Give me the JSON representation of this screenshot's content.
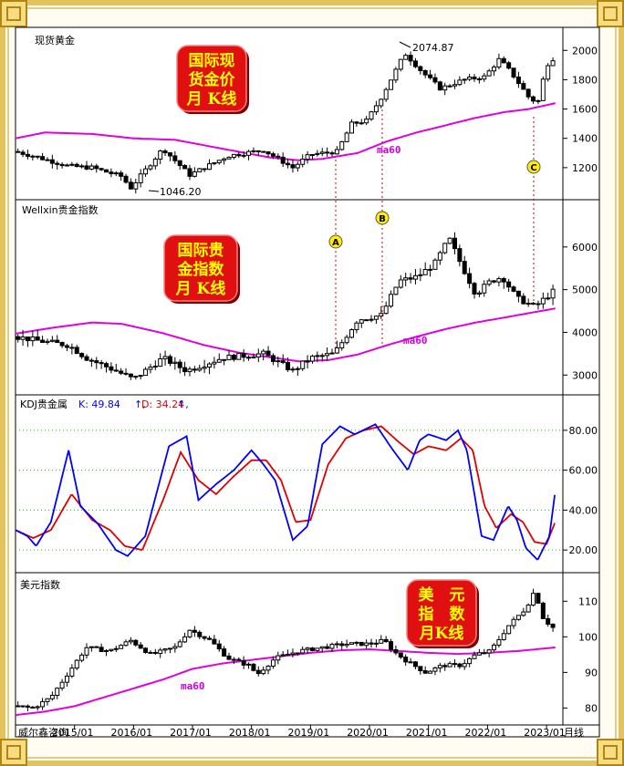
{
  "colors": {
    "frame_gold": "#d9b44a",
    "ma60": "#e000e0",
    "kdj_k": "#0000ff",
    "kdj_d": "#e00000",
    "badge_red": "#e01010",
    "badge_text": "#ffff00",
    "marker_fill": "#ffee00",
    "grid_dotted": "#2faa2f"
  },
  "chart_data": [
    {
      "type": "candlestick",
      "title": "现货黄金",
      "badge_lines": [
        "国际现",
        "货金价",
        "月 K线"
      ],
      "annotations": {
        "high_label": "2074.87",
        "low_label": "1046.20",
        "ma_label": "ma60",
        "marker": "C"
      },
      "ylim": [
        1000,
        2120
      ],
      "yticks": [
        "1200",
        "1400",
        "1600",
        "1800",
        "2000"
      ],
      "ytick_values": [
        1200,
        1400,
        1600,
        1800,
        2000
      ],
      "anchors": [
        [
          2014.0,
          1310
        ],
        [
          2014.3,
          1280
        ],
        [
          2014.9,
          1210
        ],
        [
          2015.3,
          1200
        ],
        [
          2015.8,
          1140
        ],
        [
          2015.95,
          1060
        ],
        [
          2016.5,
          1330
        ],
        [
          2016.95,
          1150
        ],
        [
          2017.6,
          1280
        ],
        [
          2018.2,
          1320
        ],
        [
          2018.7,
          1200
        ],
        [
          2019.0,
          1290
        ],
        [
          2019.45,
          1310
        ],
        [
          2019.7,
          1500
        ],
        [
          2019.95,
          1520
        ],
        [
          2020.2,
          1680
        ],
        [
          2020.6,
          1980
        ],
        [
          2020.9,
          1850
        ],
        [
          2021.2,
          1740
        ],
        [
          2021.6,
          1800
        ],
        [
          2021.95,
          1820
        ],
        [
          2022.2,
          1940
        ],
        [
          2022.4,
          1850
        ],
        [
          2022.7,
          1680
        ],
        [
          2022.85,
          1640
        ],
        [
          2023.0,
          1900
        ],
        [
          2023.15,
          1960
        ]
      ],
      "ma60": [
        [
          2014.0,
          1400
        ],
        [
          2014.5,
          1440
        ],
        [
          2015.3,
          1430
        ],
        [
          2016.0,
          1400
        ],
        [
          2016.7,
          1390
        ],
        [
          2017.5,
          1330
        ],
        [
          2018.3,
          1270
        ],
        [
          2018.8,
          1250
        ],
        [
          2019.2,
          1260
        ],
        [
          2019.8,
          1300
        ],
        [
          2020.3,
          1380
        ],
        [
          2020.8,
          1440
        ],
        [
          2021.3,
          1490
        ],
        [
          2021.8,
          1540
        ],
        [
          2022.3,
          1580
        ],
        [
          2022.7,
          1600
        ],
        [
          2023.15,
          1640
        ]
      ]
    },
    {
      "type": "candlestick",
      "title": "Wellxin贵金指数",
      "badge_lines": [
        "国际贵",
        "金指数",
        "月 K线"
      ],
      "annotations": {
        "ma_label": "ma60",
        "markers": [
          "A",
          "B"
        ]
      },
      "ylim": [
        2600,
        7000
      ],
      "yticks": [
        "3000",
        "4000",
        "5000",
        "6000"
      ],
      "ytick_values": [
        3000,
        4000,
        5000,
        6000
      ],
      "anchors": [
        [
          2014.0,
          3900
        ],
        [
          2014.4,
          3800
        ],
        [
          2014.9,
          3700
        ],
        [
          2015.2,
          3400
        ],
        [
          2015.7,
          3100
        ],
        [
          2016.0,
          2900
        ],
        [
          2016.5,
          3400
        ],
        [
          2016.9,
          3100
        ],
        [
          2017.5,
          3400
        ],
        [
          2018.2,
          3500
        ],
        [
          2018.7,
          3100
        ],
        [
          2019.0,
          3400
        ],
        [
          2019.4,
          3500
        ],
        [
          2019.8,
          4300
        ],
        [
          2020.2,
          4400
        ],
        [
          2020.5,
          5200
        ],
        [
          2020.8,
          5300
        ],
        [
          2021.1,
          5600
        ],
        [
          2021.35,
          6200
        ],
        [
          2021.55,
          5600
        ],
        [
          2021.8,
          4900
        ],
        [
          2022.05,
          5200
        ],
        [
          2022.25,
          5300
        ],
        [
          2022.5,
          4800
        ],
        [
          2022.8,
          4600
        ],
        [
          2023.15,
          5000
        ]
      ],
      "ma60": [
        [
          2014.0,
          3970
        ],
        [
          2014.7,
          4120
        ],
        [
          2015.3,
          4230
        ],
        [
          2015.8,
          4200
        ],
        [
          2016.5,
          3980
        ],
        [
          2017.2,
          3700
        ],
        [
          2017.8,
          3520
        ],
        [
          2018.4,
          3400
        ],
        [
          2018.8,
          3320
        ],
        [
          2019.3,
          3350
        ],
        [
          2019.8,
          3480
        ],
        [
          2020.3,
          3700
        ],
        [
          2020.8,
          3900
        ],
        [
          2021.3,
          4080
        ],
        [
          2021.8,
          4230
        ],
        [
          2022.3,
          4350
        ],
        [
          2022.7,
          4450
        ],
        [
          2023.15,
          4560
        ]
      ]
    },
    {
      "type": "line",
      "title": "KDJ贵金属",
      "k_label": "K: 49.84",
      "d_label": "D: 34.24",
      "legend_suffix": "↑,",
      "ylim": [
        10,
        90
      ],
      "yticks": [
        "20.00",
        "40.00",
        "60.00",
        "80.00"
      ],
      "ytick_values": [
        20,
        40,
        60,
        80
      ],
      "series": [
        {
          "name": "K",
          "color": "#0000ff",
          "points": [
            [
              2014.0,
              30
            ],
            [
              2014.2,
              27
            ],
            [
              2014.35,
              22
            ],
            [
              2014.6,
              34
            ],
            [
              2014.9,
              70
            ],
            [
              2015.1,
              42
            ],
            [
              2015.4,
              33
            ],
            [
              2015.7,
              20
            ],
            [
              2015.9,
              17
            ],
            [
              2016.2,
              27
            ],
            [
              2016.6,
              72
            ],
            [
              2016.9,
              77
            ],
            [
              2017.1,
              45
            ],
            [
              2017.4,
              53
            ],
            [
              2017.7,
              60
            ],
            [
              2018.0,
              70
            ],
            [
              2018.2,
              63
            ],
            [
              2018.4,
              55
            ],
            [
              2018.7,
              25
            ],
            [
              2018.95,
              32
            ],
            [
              2019.2,
              73
            ],
            [
              2019.5,
              82
            ],
            [
              2019.75,
              78
            ],
            [
              2020.1,
              83
            ],
            [
              2020.4,
              70
            ],
            [
              2020.65,
              60
            ],
            [
              2020.85,
              75
            ],
            [
              2021.0,
              78
            ],
            [
              2021.3,
              75
            ],
            [
              2021.5,
              80
            ],
            [
              2021.65,
              70
            ],
            [
              2021.9,
              27
            ],
            [
              2022.1,
              25
            ],
            [
              2022.35,
              42
            ],
            [
              2022.5,
              35
            ],
            [
              2022.65,
              21
            ],
            [
              2022.85,
              15
            ],
            [
              2023.05,
              27
            ],
            [
              2023.15,
              49.84
            ]
          ]
        },
        {
          "name": "D",
          "color": "#e00000",
          "points": [
            [
              2014.0,
              30
            ],
            [
              2014.3,
              26
            ],
            [
              2014.6,
              30
            ],
            [
              2014.95,
              48
            ],
            [
              2015.3,
              35
            ],
            [
              2015.6,
              30
            ],
            [
              2015.85,
              22
            ],
            [
              2016.15,
              20
            ],
            [
              2016.5,
              45
            ],
            [
              2016.8,
              69
            ],
            [
              2017.1,
              55
            ],
            [
              2017.4,
              48
            ],
            [
              2017.7,
              57
            ],
            [
              2018.0,
              65
            ],
            [
              2018.25,
              65
            ],
            [
              2018.5,
              55
            ],
            [
              2018.75,
              34
            ],
            [
              2019.0,
              35
            ],
            [
              2019.3,
              63
            ],
            [
              2019.6,
              76
            ],
            [
              2019.9,
              80
            ],
            [
              2020.2,
              82
            ],
            [
              2020.5,
              74
            ],
            [
              2020.75,
              68
            ],
            [
              2021.0,
              72
            ],
            [
              2021.3,
              70
            ],
            [
              2021.55,
              76
            ],
            [
              2021.75,
              70
            ],
            [
              2021.95,
              42
            ],
            [
              2022.15,
              31
            ],
            [
              2022.4,
              38
            ],
            [
              2022.6,
              34
            ],
            [
              2022.8,
              24
            ],
            [
              2023.0,
              23
            ],
            [
              2023.15,
              34.24
            ]
          ]
        }
      ]
    },
    {
      "type": "candlestick",
      "title": "美元指数",
      "badge_lines": [
        "美　元",
        "指　数",
        "月K线"
      ],
      "annotations": {
        "ma_label": "ma60"
      },
      "ylim": [
        76,
        117
      ],
      "yticks": [
        "80",
        "90",
        "100",
        "110"
      ],
      "ytick_values": [
        80,
        90,
        100,
        110
      ],
      "anchors": [
        [
          2014.0,
          80.5
        ],
        [
          2014.3,
          80
        ],
        [
          2014.6,
          83
        ],
        [
          2014.9,
          90
        ],
        [
          2015.2,
          97
        ],
        [
          2015.6,
          96
        ],
        [
          2015.95,
          99
        ],
        [
          2016.3,
          95
        ],
        [
          2016.7,
          97
        ],
        [
          2016.95,
          102
        ],
        [
          2017.3,
          99
        ],
        [
          2017.6,
          94
        ],
        [
          2017.95,
          92
        ],
        [
          2018.1,
          89.5
        ],
        [
          2018.4,
          94
        ],
        [
          2018.8,
          96
        ],
        [
          2019.2,
          97
        ],
        [
          2019.6,
          98
        ],
        [
          2020.0,
          98
        ],
        [
          2020.25,
          99
        ],
        [
          2020.4,
          96
        ],
        [
          2020.65,
          93
        ],
        [
          2020.95,
          90
        ],
        [
          2021.25,
          92
        ],
        [
          2021.55,
          92
        ],
        [
          2021.8,
          95
        ],
        [
          2022.05,
          96
        ],
        [
          2022.35,
          103
        ],
        [
          2022.65,
          108
        ],
        [
          2022.8,
          113
        ],
        [
          2022.95,
          105
        ],
        [
          2023.15,
          102
        ]
      ],
      "ma60": [
        [
          2014.0,
          78
        ],
        [
          2014.5,
          79
        ],
        [
          2015.0,
          80.5
        ],
        [
          2015.5,
          83
        ],
        [
          2016.0,
          85.5
        ],
        [
          2016.5,
          88
        ],
        [
          2017.0,
          91
        ],
        [
          2017.5,
          92.5
        ],
        [
          2018.0,
          93.5
        ],
        [
          2018.5,
          94.5
        ],
        [
          2019.0,
          95.5
        ],
        [
          2019.5,
          96.2
        ],
        [
          2020.0,
          96.5
        ],
        [
          2020.5,
          96
        ],
        [
          2021.0,
          95.5
        ],
        [
          2021.5,
          95.2
        ],
        [
          2022.0,
          95.5
        ],
        [
          2022.5,
          96
        ],
        [
          2023.15,
          97
        ]
      ]
    }
  ],
  "xaxis": {
    "labels": [
      "2015/01",
      "2016/01",
      "2017/01",
      "2018/01",
      "2019/01",
      "2020/01",
      "2021/01",
      "2022/01",
      "2023/01"
    ],
    "label_years": [
      2015,
      2016,
      2017,
      2018,
      2019,
      2020,
      2021,
      2022,
      2023
    ],
    "suffix": "月线",
    "footer_left": "威尔鑫咨询"
  }
}
